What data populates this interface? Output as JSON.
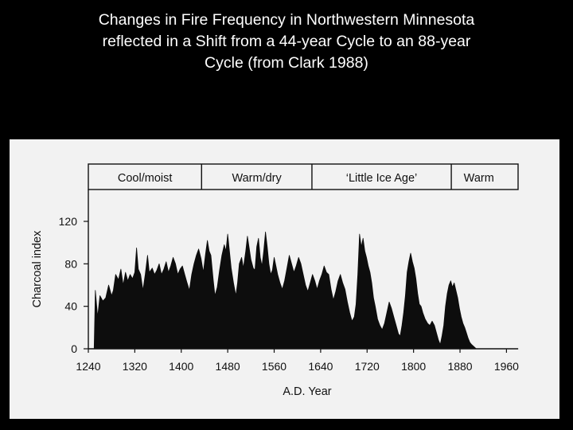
{
  "slide": {
    "title_lines": [
      "Changes in Fire Frequency in Northwestern Minnesota",
      "reflected in a Shift from a 44-year Cycle to an 88-year",
      "Cycle (from Clark 1988)"
    ]
  },
  "chart_data": {
    "type": "area",
    "xlabel": "A.D. Year",
    "ylabel": "Charcoal index",
    "xlim": [
      1240,
      1980
    ],
    "ylim": [
      0,
      150
    ],
    "x_ticks": [
      1240,
      1320,
      1400,
      1480,
      1560,
      1640,
      1720,
      1800,
      1880,
      1960
    ],
    "y_ticks": [
      0,
      40,
      80,
      120
    ],
    "grid": false,
    "color": "#0d0d0d",
    "periods": [
      {
        "label": "Cool/moist",
        "start": 1240,
        "end": 1435
      },
      {
        "label": "Warm/dry",
        "start": 1435,
        "end": 1625
      },
      {
        "label": "‘Little Ice Age’",
        "start": 1625,
        "end": 1865
      },
      {
        "label": "Warm",
        "start": 1865,
        "end": 1960
      }
    ],
    "series": [
      {
        "values": [
          [
            1240,
            0
          ],
          [
            1250,
            0
          ],
          [
            1252,
            55
          ],
          [
            1256,
            30
          ],
          [
            1260,
            50
          ],
          [
            1265,
            45
          ],
          [
            1270,
            48
          ],
          [
            1275,
            60
          ],
          [
            1280,
            50
          ],
          [
            1283,
            55
          ],
          [
            1287,
            70
          ],
          [
            1292,
            65
          ],
          [
            1296,
            75
          ],
          [
            1300,
            60
          ],
          [
            1304,
            72
          ],
          [
            1308,
            64
          ],
          [
            1312,
            70
          ],
          [
            1316,
            66
          ],
          [
            1320,
            72
          ],
          [
            1323,
            95
          ],
          [
            1326,
            75
          ],
          [
            1330,
            70
          ],
          [
            1334,
            55
          ],
          [
            1338,
            70
          ],
          [
            1342,
            88
          ],
          [
            1345,
            72
          ],
          [
            1350,
            76
          ],
          [
            1354,
            70
          ],
          [
            1358,
            74
          ],
          [
            1362,
            80
          ],
          [
            1366,
            70
          ],
          [
            1370,
            75
          ],
          [
            1374,
            82
          ],
          [
            1378,
            72
          ],
          [
            1382,
            78
          ],
          [
            1386,
            86
          ],
          [
            1390,
            80
          ],
          [
            1394,
            70
          ],
          [
            1398,
            75
          ],
          [
            1402,
            78
          ],
          [
            1406,
            70
          ],
          [
            1410,
            62
          ],
          [
            1414,
            55
          ],
          [
            1418,
            70
          ],
          [
            1422,
            80
          ],
          [
            1426,
            88
          ],
          [
            1430,
            94
          ],
          [
            1434,
            85
          ],
          [
            1438,
            72
          ],
          [
            1442,
            90
          ],
          [
            1445,
            102
          ],
          [
            1448,
            92
          ],
          [
            1451,
            88
          ],
          [
            1455,
            65
          ],
          [
            1458,
            50
          ],
          [
            1462,
            58
          ],
          [
            1466,
            74
          ],
          [
            1470,
            88
          ],
          [
            1474,
            98
          ],
          [
            1477,
            92
          ],
          [
            1480,
            108
          ],
          [
            1483,
            92
          ],
          [
            1486,
            76
          ],
          [
            1490,
            62
          ],
          [
            1494,
            50
          ],
          [
            1497,
            62
          ],
          [
            1500,
            80
          ],
          [
            1504,
            86
          ],
          [
            1507,
            76
          ],
          [
            1511,
            92
          ],
          [
            1514,
            106
          ],
          [
            1517,
            95
          ],
          [
            1520,
            84
          ],
          [
            1524,
            76
          ],
          [
            1527,
            74
          ],
          [
            1530,
            96
          ],
          [
            1533,
            104
          ],
          [
            1536,
            86
          ],
          [
            1539,
            78
          ],
          [
            1542,
            92
          ],
          [
            1545,
            110
          ],
          [
            1548,
            96
          ],
          [
            1551,
            80
          ],
          [
            1554,
            70
          ],
          [
            1557,
            74
          ],
          [
            1560,
            86
          ],
          [
            1563,
            78
          ],
          [
            1566,
            70
          ],
          [
            1570,
            62
          ],
          [
            1574,
            56
          ],
          [
            1578,
            64
          ],
          [
            1582,
            76
          ],
          [
            1586,
            88
          ],
          [
            1590,
            80
          ],
          [
            1594,
            72
          ],
          [
            1598,
            78
          ],
          [
            1602,
            86
          ],
          [
            1606,
            80
          ],
          [
            1610,
            70
          ],
          [
            1614,
            60
          ],
          [
            1618,
            54
          ],
          [
            1622,
            62
          ],
          [
            1626,
            70
          ],
          [
            1630,
            64
          ],
          [
            1634,
            56
          ],
          [
            1638,
            64
          ],
          [
            1642,
            70
          ],
          [
            1646,
            78
          ],
          [
            1650,
            72
          ],
          [
            1654,
            70
          ],
          [
            1658,
            56
          ],
          [
            1662,
            46
          ],
          [
            1666,
            54
          ],
          [
            1670,
            64
          ],
          [
            1674,
            70
          ],
          [
            1678,
            62
          ],
          [
            1682,
            56
          ],
          [
            1686,
            44
          ],
          [
            1690,
            34
          ],
          [
            1694,
            26
          ],
          [
            1698,
            30
          ],
          [
            1701,
            42
          ],
          [
            1704,
            70
          ],
          [
            1707,
            108
          ],
          [
            1710,
            96
          ],
          [
            1713,
            104
          ],
          [
            1716,
            92
          ],
          [
            1719,
            86
          ],
          [
            1722,
            78
          ],
          [
            1725,
            72
          ],
          [
            1728,
            62
          ],
          [
            1731,
            48
          ],
          [
            1734,
            40
          ],
          [
            1738,
            28
          ],
          [
            1742,
            22
          ],
          [
            1746,
            18
          ],
          [
            1750,
            24
          ],
          [
            1754,
            34
          ],
          [
            1758,
            44
          ],
          [
            1762,
            38
          ],
          [
            1766,
            30
          ],
          [
            1770,
            22
          ],
          [
            1774,
            14
          ],
          [
            1777,
            12
          ],
          [
            1780,
            22
          ],
          [
            1783,
            34
          ],
          [
            1786,
            50
          ],
          [
            1789,
            72
          ],
          [
            1792,
            82
          ],
          [
            1795,
            90
          ],
          [
            1798,
            82
          ],
          [
            1801,
            76
          ],
          [
            1804,
            66
          ],
          [
            1807,
            52
          ],
          [
            1810,
            42
          ],
          [
            1813,
            40
          ],
          [
            1816,
            34
          ],
          [
            1820,
            28
          ],
          [
            1824,
            24
          ],
          [
            1828,
            22
          ],
          [
            1832,
            26
          ],
          [
            1836,
            22
          ],
          [
            1840,
            14
          ],
          [
            1843,
            8
          ],
          [
            1846,
            4
          ],
          [
            1849,
            12
          ],
          [
            1852,
            22
          ],
          [
            1855,
            40
          ],
          [
            1858,
            52
          ],
          [
            1861,
            60
          ],
          [
            1864,
            64
          ],
          [
            1867,
            58
          ],
          [
            1870,
            62
          ],
          [
            1873,
            55
          ],
          [
            1876,
            48
          ],
          [
            1879,
            38
          ],
          [
            1882,
            30
          ],
          [
            1885,
            24
          ],
          [
            1888,
            20
          ],
          [
            1891,
            15
          ],
          [
            1894,
            10
          ],
          [
            1897,
            6
          ],
          [
            1900,
            4
          ],
          [
            1904,
            2
          ],
          [
            1908,
            0
          ],
          [
            1980,
            0
          ]
        ]
      }
    ]
  }
}
